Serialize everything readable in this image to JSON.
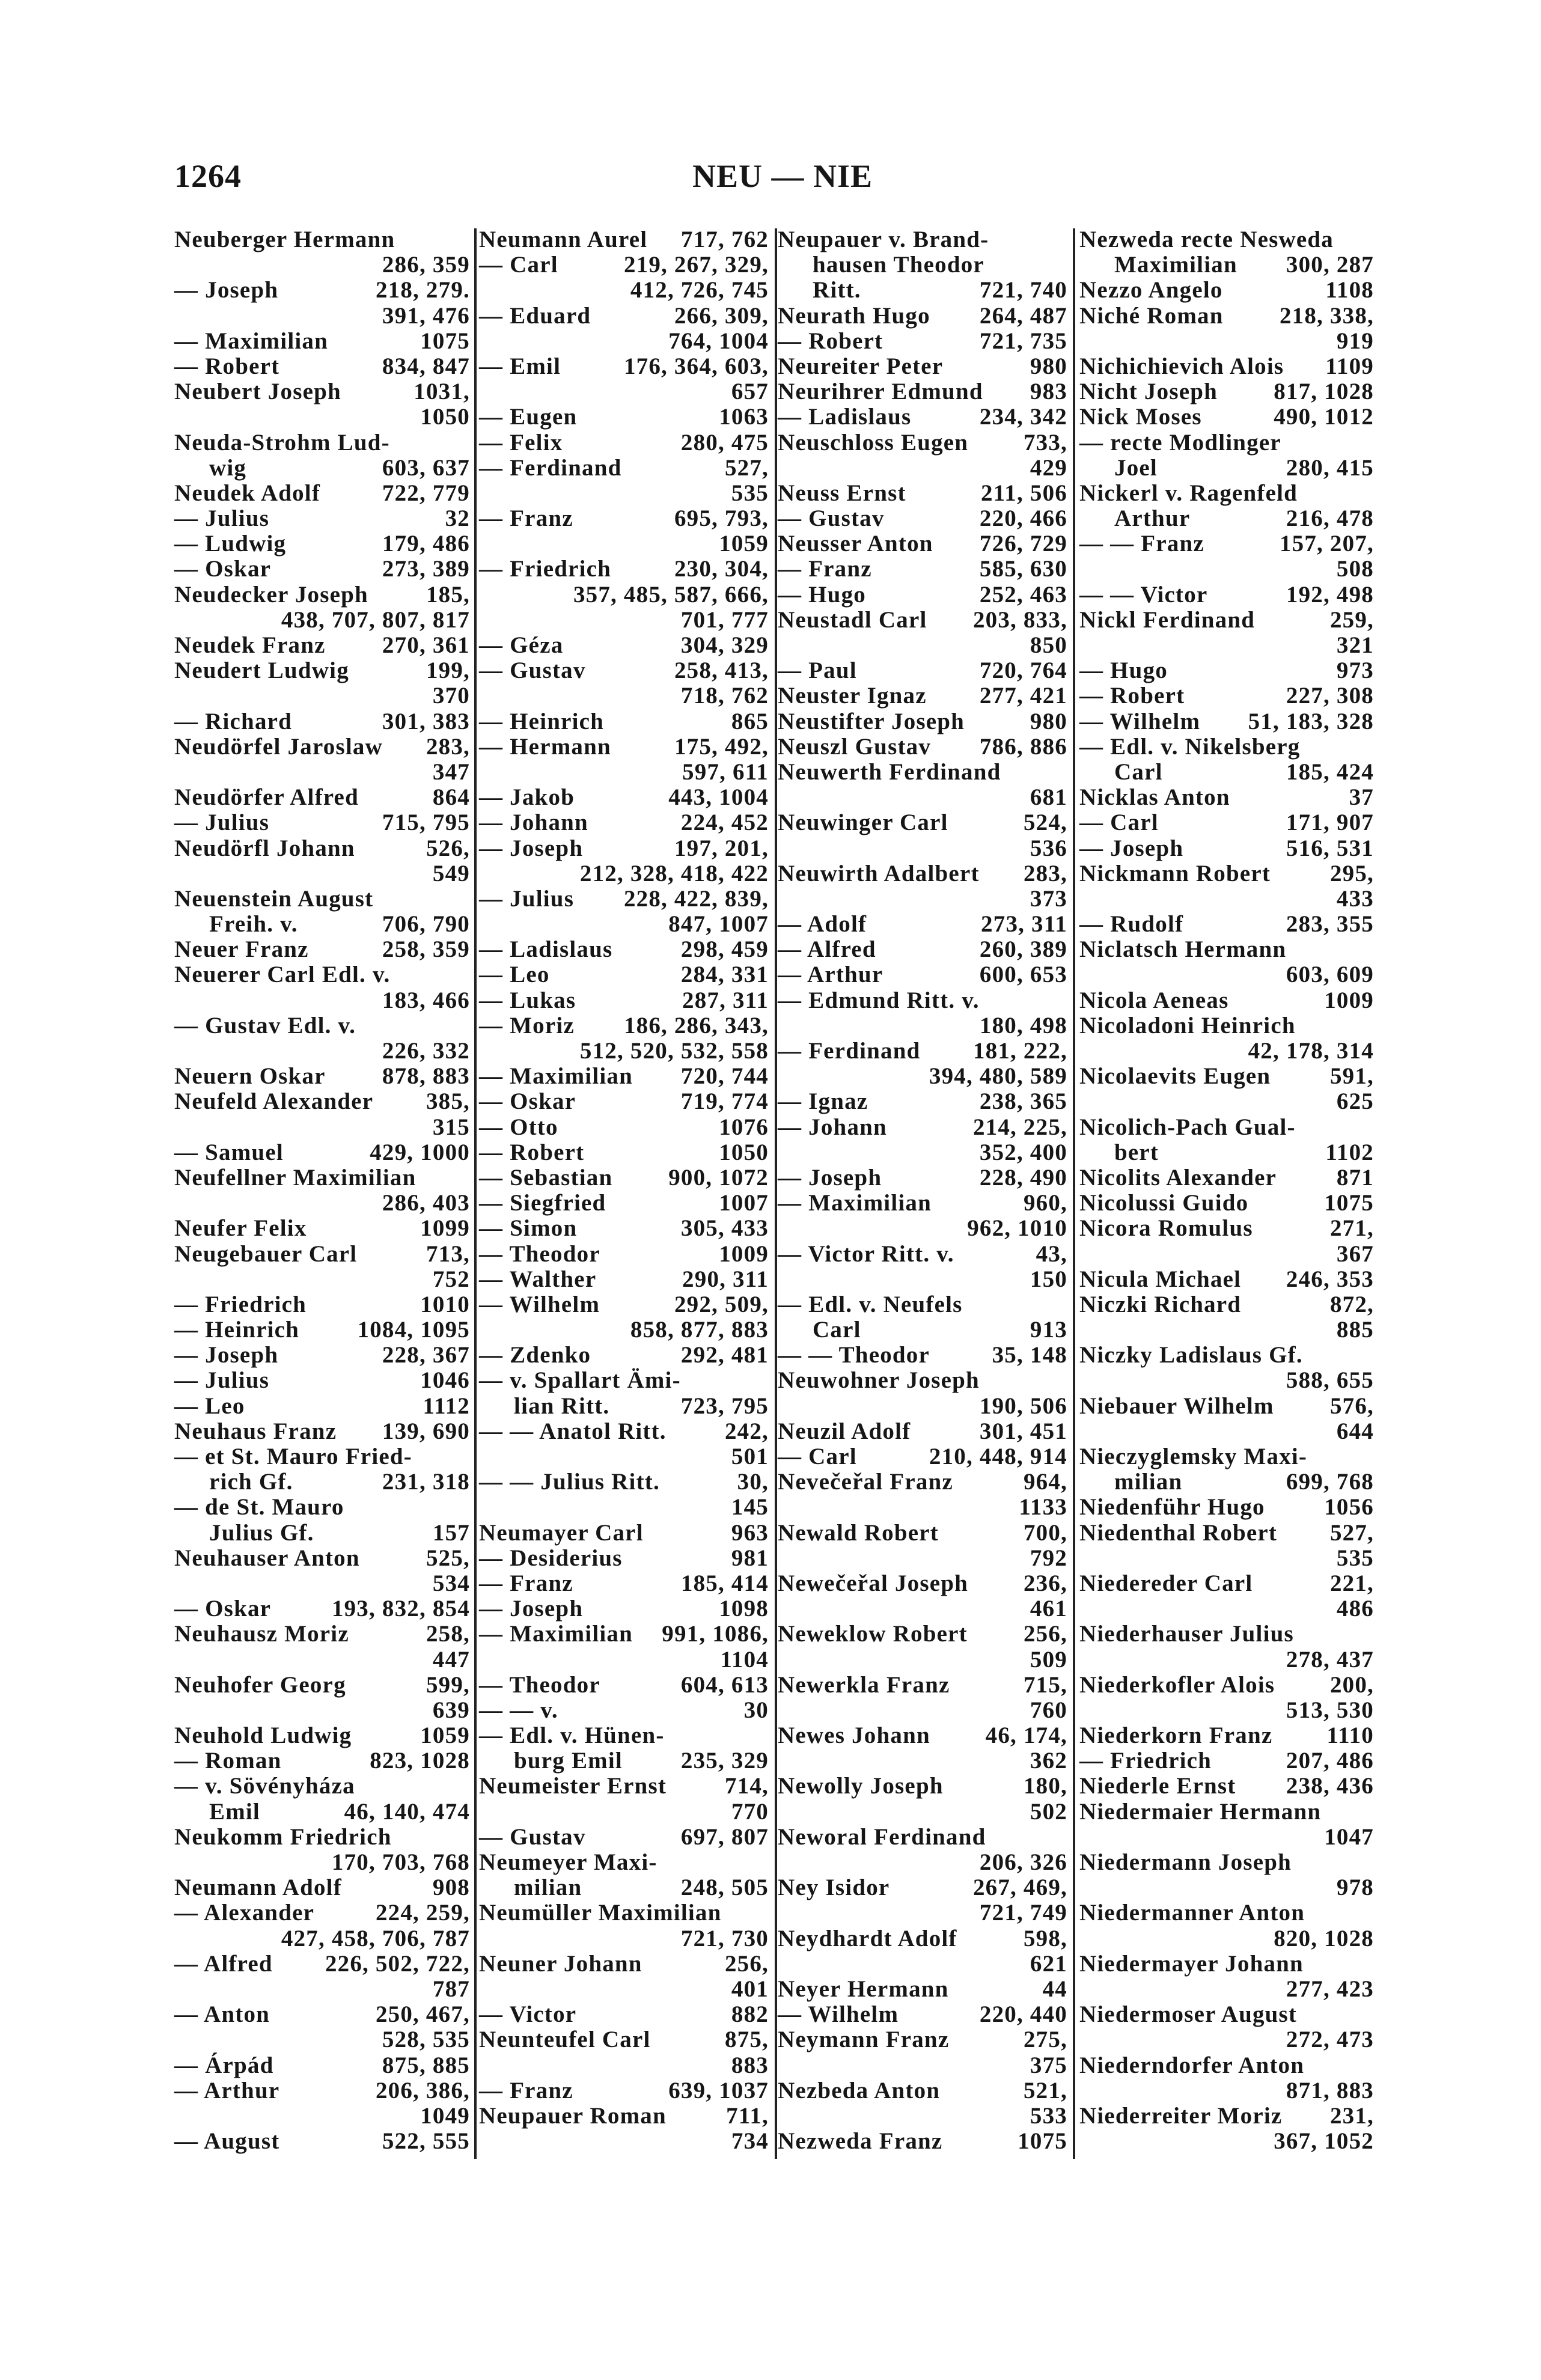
{
  "header": {
    "page_number": "1264",
    "running_head": "NEU — NIE"
  },
  "columns": [
    {
      "lines": [
        [
          "Neuberger Hermann",
          ""
        ],
        [
          "",
          "286, 359"
        ],
        [
          "— Joseph",
          "218, 279."
        ],
        [
          "",
          "391, 476"
        ],
        [
          "— Maximilian",
          "1075"
        ],
        [
          "— Robert",
          "834, 847"
        ],
        [
          "Neubert Joseph",
          "1031,"
        ],
        [
          "",
          "1050"
        ],
        [
          "Neuda-Strohm Lud-",
          ""
        ],
        [
          "wig",
          "603, 637",
          1
        ],
        [
          "Neudek Adolf",
          "722, 779"
        ],
        [
          "— Julius",
          "32"
        ],
        [
          "— Ludwig",
          "179, 486"
        ],
        [
          "— Oskar",
          "273, 389"
        ],
        [
          "Neudecker Joseph",
          "185,"
        ],
        [
          "",
          "438, 707, 807, 817"
        ],
        [
          "Neudek Franz",
          "270, 361"
        ],
        [
          "Neudert Ludwig",
          "199,"
        ],
        [
          "",
          "370"
        ],
        [
          "— Richard",
          "301, 383"
        ],
        [
          "Neudörfel Jaroslaw",
          "283,"
        ],
        [
          "",
          "347"
        ],
        [
          "Neudörfer Alfred",
          "864"
        ],
        [
          "— Julius",
          "715, 795"
        ],
        [
          "Neudörfl Johann",
          "526,"
        ],
        [
          "",
          "549"
        ],
        [
          "Neuenstein August",
          ""
        ],
        [
          "Freih. v.",
          "706, 790",
          1
        ],
        [
          "Neuer Franz",
          "258, 359"
        ],
        [
          "Neuerer Carl Edl. v.",
          ""
        ],
        [
          "",
          "183, 466"
        ],
        [
          "— Gustav Edl. v.",
          ""
        ],
        [
          "",
          "226, 332"
        ],
        [
          "Neuern Oskar",
          "878, 883"
        ],
        [
          "Neufeld Alexander",
          "385,"
        ],
        [
          "",
          "315"
        ],
        [
          "— Samuel",
          "429, 1000"
        ],
        [
          "Neufellner Maximilian",
          ""
        ],
        [
          "",
          "286, 403"
        ],
        [
          "Neufer Felix",
          "1099"
        ],
        [
          "Neugebauer Carl",
          "713,"
        ],
        [
          "",
          "752"
        ],
        [
          "— Friedrich",
          "1010"
        ],
        [
          "— Heinrich",
          "1084, 1095"
        ],
        [
          "— Joseph",
          "228, 367"
        ],
        [
          "— Julius",
          "1046"
        ],
        [
          "— Leo",
          "1112"
        ],
        [
          "Neuhaus Franz",
          "139, 690"
        ],
        [
          "— et St. Mauro Fried-",
          ""
        ],
        [
          "rich Gf.",
          "231, 318",
          1
        ],
        [
          "— de St. Mauro",
          ""
        ],
        [
          "Julius Gf.",
          "157",
          1
        ],
        [
          "Neuhauser Anton",
          "525,"
        ],
        [
          "",
          "534"
        ],
        [
          "— Oskar",
          "193, 832, 854"
        ],
        [
          "Neuhausz Moriz",
          "258,"
        ],
        [
          "",
          "447"
        ],
        [
          "Neuhofer Georg",
          "599,"
        ],
        [
          "",
          "639"
        ],
        [
          "Neuhold Ludwig",
          "1059"
        ],
        [
          "— Roman",
          "823, 1028"
        ],
        [
          "— v. Sövényháza",
          ""
        ],
        [
          "Emil",
          "46, 140, 474",
          1
        ],
        [
          "Neukomm Friedrich",
          ""
        ],
        [
          "",
          "170, 703, 768"
        ],
        [
          "Neumann Adolf",
          "908"
        ],
        [
          "— Alexander",
          "224, 259,"
        ],
        [
          "",
          "427, 458, 706, 787"
        ],
        [
          "— Alfred",
          "226, 502, 722,"
        ],
        [
          "",
          "787"
        ],
        [
          "— Anton",
          "250, 467,"
        ],
        [
          "",
          "528, 535"
        ],
        [
          "— Árpád",
          "875, 885"
        ],
        [
          "— Arthur",
          "206, 386,"
        ],
        [
          "",
          "1049"
        ],
        [
          "— August",
          "522, 555"
        ]
      ]
    },
    {
      "lines": [
        [
          "Neumann Aurel",
          "717, 762"
        ],
        [
          "— Carl",
          "219, 267, 329,"
        ],
        [
          "",
          "412, 726, 745"
        ],
        [
          "— Eduard",
          "266, 309,"
        ],
        [
          "",
          "764, 1004"
        ],
        [
          "— Emil",
          "176, 364, 603,"
        ],
        [
          "",
          "657"
        ],
        [
          "— Eugen",
          "1063"
        ],
        [
          "— Felix",
          "280, 475"
        ],
        [
          "— Ferdinand",
          "527,"
        ],
        [
          "",
          "535"
        ],
        [
          "— Franz",
          "695, 793,"
        ],
        [
          "",
          "1059"
        ],
        [
          "— Friedrich",
          "230, 304,"
        ],
        [
          "",
          "357, 485, 587, 666,"
        ],
        [
          "",
          "701, 777"
        ],
        [
          "— Géza",
          "304, 329"
        ],
        [
          "— Gustav",
          "258, 413,"
        ],
        [
          "",
          "718, 762"
        ],
        [
          "— Heinrich",
          "865"
        ],
        [
          "— Hermann",
          "175, 492,"
        ],
        [
          "",
          "597, 611"
        ],
        [
          "— Jakob",
          "443, 1004"
        ],
        [
          "— Johann",
          "224, 452"
        ],
        [
          "— Joseph",
          "197, 201,"
        ],
        [
          "",
          "212, 328, 418, 422"
        ],
        [
          "— Julius",
          "228, 422, 839,"
        ],
        [
          "",
          "847, 1007"
        ],
        [
          "— Ladislaus",
          "298, 459"
        ],
        [
          "— Leo",
          "284, 331"
        ],
        [
          "— Lukas",
          "287, 311"
        ],
        [
          "— Moriz",
          "186, 286, 343,"
        ],
        [
          "",
          "512, 520, 532, 558"
        ],
        [
          "— Maximilian",
          "720, 744"
        ],
        [
          "— Oskar",
          "719, 774"
        ],
        [
          "— Otto",
          "1076"
        ],
        [
          "— Robert",
          "1050"
        ],
        [
          "— Sebastian",
          "900, 1072"
        ],
        [
          "— Siegfried",
          "1007"
        ],
        [
          "— Simon",
          "305, 433"
        ],
        [
          "— Theodor",
          "1009"
        ],
        [
          "— Walther",
          "290, 311"
        ],
        [
          "— Wilhelm",
          "292, 509,"
        ],
        [
          "",
          "858, 877, 883"
        ],
        [
          "— Zdenko",
          "292, 481"
        ],
        [
          "— v. Spallart Ämi-",
          ""
        ],
        [
          "lian Ritt.",
          "723, 795",
          1
        ],
        [
          "— — Anatol Ritt.",
          "242,"
        ],
        [
          "",
          "501"
        ],
        [
          "— — Julius Ritt.",
          "30,"
        ],
        [
          "",
          "145"
        ],
        [
          "Neumayer Carl",
          "963"
        ],
        [
          "— Desiderius",
          "981"
        ],
        [
          "— Franz",
          "185, 414"
        ],
        [
          "— Joseph",
          "1098"
        ],
        [
          "— Maximilian",
          "991, 1086,"
        ],
        [
          "",
          "1104"
        ],
        [
          "— Theodor",
          "604, 613"
        ],
        [
          "— — v.",
          "30"
        ],
        [
          "— Edl. v. Hünen-",
          ""
        ],
        [
          "burg Emil",
          "235, 329",
          1
        ],
        [
          "Neumeister Ernst",
          "714,"
        ],
        [
          "",
          "770"
        ],
        [
          "— Gustav",
          "697, 807"
        ],
        [
          "Neumeyer Maxi-",
          ""
        ],
        [
          "milian",
          "248, 505",
          1
        ],
        [
          "Neumüller Maximilian",
          ""
        ],
        [
          "",
          "721, 730"
        ],
        [
          "Neuner Johann",
          "256,"
        ],
        [
          "",
          "401"
        ],
        [
          "— Victor",
          "882"
        ],
        [
          "Neunteufel Carl",
          "875,"
        ],
        [
          "",
          "883"
        ],
        [
          "— Franz",
          "639, 1037"
        ],
        [
          "Neupauer Roman",
          "711,"
        ],
        [
          "",
          "734"
        ]
      ]
    },
    {
      "lines": [
        [
          "Neupauer v. Brand-",
          ""
        ],
        [
          "hausen Theodor",
          "",
          1
        ],
        [
          "Ritt.",
          "721, 740",
          1
        ],
        [
          "Neurath Hugo",
          "264, 487"
        ],
        [
          "— Robert",
          "721, 735"
        ],
        [
          "Neureiter Peter",
          "980"
        ],
        [
          "Neurihrer Edmund",
          "983"
        ],
        [
          "— Ladislaus",
          "234, 342"
        ],
        [
          "Neuschloss Eugen",
          "733,"
        ],
        [
          "",
          "429"
        ],
        [
          "Neuss Ernst",
          "211, 506"
        ],
        [
          "— Gustav",
          "220, 466"
        ],
        [
          "Neusser Anton",
          "726, 729"
        ],
        [
          "— Franz",
          "585, 630"
        ],
        [
          "— Hugo",
          "252, 463"
        ],
        [
          "Neustadl Carl",
          "203, 833,"
        ],
        [
          "",
          "850"
        ],
        [
          "— Paul",
          "720, 764"
        ],
        [
          "Neuster Ignaz",
          "277, 421"
        ],
        [
          "Neustifter Joseph",
          "980"
        ],
        [
          "Neuszl Gustav",
          "786, 886"
        ],
        [
          "Neuwerth Ferdinand",
          ""
        ],
        [
          "",
          "681"
        ],
        [
          "Neuwinger Carl",
          "524,"
        ],
        [
          "",
          "536"
        ],
        [
          "Neuwirth Adalbert",
          "283,"
        ],
        [
          "",
          "373"
        ],
        [
          "— Adolf",
          "273, 311"
        ],
        [
          "— Alfred",
          "260, 389"
        ],
        [
          "— Arthur",
          "600, 653"
        ],
        [
          "— Edmund Ritt. v.",
          ""
        ],
        [
          "",
          "180, 498"
        ],
        [
          "— Ferdinand",
          "181, 222,"
        ],
        [
          "",
          "394, 480, 589"
        ],
        [
          "— Ignaz",
          "238, 365"
        ],
        [
          "— Johann",
          "214, 225,"
        ],
        [
          "",
          "352, 400"
        ],
        [
          "— Joseph",
          "228, 490"
        ],
        [
          "— Maximilian",
          "960,"
        ],
        [
          "",
          "962, 1010"
        ],
        [
          "— Victor Ritt. v.",
          "43,"
        ],
        [
          "",
          "150"
        ],
        [
          "— Edl. v. Neufels",
          ""
        ],
        [
          "Carl",
          "913",
          1
        ],
        [
          "— — Theodor",
          "35, 148"
        ],
        [
          "Neuwohner Joseph",
          ""
        ],
        [
          "",
          "190, 506"
        ],
        [
          "Neuzil Adolf",
          "301, 451"
        ],
        [
          "— Carl",
          "210, 448, 914"
        ],
        [
          "Nevečeřal Franz",
          "964,"
        ],
        [
          "",
          "1133"
        ],
        [
          "Newald Robert",
          "700,"
        ],
        [
          "",
          "792"
        ],
        [
          "Newečeřal Joseph",
          "236,"
        ],
        [
          "",
          "461"
        ],
        [
          "Neweklow Robert",
          "256,"
        ],
        [
          "",
          "509"
        ],
        [
          "Newerkla Franz",
          "715,"
        ],
        [
          "",
          "760"
        ],
        [
          "Newes Johann",
          "46, 174,"
        ],
        [
          "",
          "362"
        ],
        [
          "Newolly Joseph",
          "180,"
        ],
        [
          "",
          "502"
        ],
        [
          "Neworal Ferdinand",
          ""
        ],
        [
          "",
          "206, 326"
        ],
        [
          "Ney Isidor",
          "267, 469,"
        ],
        [
          "",
          "721, 749"
        ],
        [
          "Neydhardt Adolf",
          "598,"
        ],
        [
          "",
          "621"
        ],
        [
          "Neyer Hermann",
          "44"
        ],
        [
          "— Wilhelm",
          "220, 440"
        ],
        [
          "Neymann Franz",
          "275,"
        ],
        [
          "",
          "375"
        ],
        [
          "Nezbeda Anton",
          "521,"
        ],
        [
          "",
          "533"
        ],
        [
          "Nezweda Franz",
          "1075"
        ]
      ]
    },
    {
      "lines": [
        [
          "Nezweda recte Nesweda",
          ""
        ],
        [
          "Maximilian",
          "300, 287",
          1
        ],
        [
          "Nezzo Angelo",
          "1108"
        ],
        [
          "Niché Roman",
          "218, 338,"
        ],
        [
          "",
          "919"
        ],
        [
          "Nichichievich Alois",
          "1109"
        ],
        [
          "Nicht Joseph",
          "817, 1028"
        ],
        [
          "Nick Moses",
          "490, 1012"
        ],
        [
          "— recte Modlinger",
          ""
        ],
        [
          "Joel",
          "280, 415",
          1
        ],
        [
          "Nickerl v. Ragenfeld",
          ""
        ],
        [
          "Arthur",
          "216, 478",
          1
        ],
        [
          "— — Franz",
          "157, 207,"
        ],
        [
          "",
          "508"
        ],
        [
          "— — Victor",
          "192, 498"
        ],
        [
          "Nickl Ferdinand",
          "259,"
        ],
        [
          "",
          "321"
        ],
        [
          "— Hugo",
          "973"
        ],
        [
          "— Robert",
          "227, 308"
        ],
        [
          "— Wilhelm",
          "51, 183, 328"
        ],
        [
          "— Edl. v. Nikelsberg",
          ""
        ],
        [
          "Carl",
          "185, 424",
          1
        ],
        [
          "Nicklas Anton",
          "37"
        ],
        [
          "— Carl",
          "171, 907"
        ],
        [
          "— Joseph",
          "516, 531"
        ],
        [
          "Nickmann Robert",
          "295,"
        ],
        [
          "",
          "433"
        ],
        [
          "— Rudolf",
          "283, 355"
        ],
        [
          "Niclatsch Hermann",
          ""
        ],
        [
          "",
          "603, 609"
        ],
        [
          "Nicola Aeneas",
          "1009"
        ],
        [
          "Nicoladoni Heinrich",
          ""
        ],
        [
          "",
          "42, 178, 314"
        ],
        [
          "Nicolaevits Eugen",
          "591,"
        ],
        [
          "",
          "625"
        ],
        [
          "Nicolich-Pach Gual-",
          ""
        ],
        [
          "bert",
          "1102",
          1
        ],
        [
          "Nicolits Alexander",
          "871"
        ],
        [
          "Nicolussi Guido",
          "1075"
        ],
        [
          "Nicora Romulus",
          "271,"
        ],
        [
          "",
          "367"
        ],
        [
          "Nicula Michael",
          "246, 353"
        ],
        [
          "Niczki Richard",
          "872,"
        ],
        [
          "",
          "885"
        ],
        [
          "Niczky Ladislaus Gf.",
          ""
        ],
        [
          "",
          "588, 655"
        ],
        [
          "Niebauer Wilhelm",
          "576,"
        ],
        [
          "",
          "644"
        ],
        [
          "Nieczyglemsky Maxi-",
          ""
        ],
        [
          "milian",
          "699, 768",
          1
        ],
        [
          "Niedenführ Hugo",
          "1056"
        ],
        [
          "Niedenthal Robert",
          "527,"
        ],
        [
          "",
          "535"
        ],
        [
          "Niedereder Carl",
          "221,"
        ],
        [
          "",
          "486"
        ],
        [
          "Niederhauser Julius",
          ""
        ],
        [
          "",
          "278, 437"
        ],
        [
          "Niederkofler Alois",
          "200,"
        ],
        [
          "",
          "513, 530"
        ],
        [
          "Niederkorn Franz",
          "1110"
        ],
        [
          "— Friedrich",
          "207, 486"
        ],
        [
          "Niederle Ernst",
          "238, 436"
        ],
        [
          "Niedermaier Hermann",
          ""
        ],
        [
          "",
          "1047"
        ],
        [
          "Niedermann Joseph",
          ""
        ],
        [
          "",
          "978"
        ],
        [
          "Niedermanner Anton",
          ""
        ],
        [
          "",
          "820, 1028"
        ],
        [
          "Niedermayer Johann",
          ""
        ],
        [
          "",
          "277, 423"
        ],
        [
          "Niedermoser August",
          ""
        ],
        [
          "",
          "272, 473"
        ],
        [
          "Niederndorfer Anton",
          ""
        ],
        [
          "",
          "871, 883"
        ],
        [
          "Niederreiter Moriz",
          "231,"
        ],
        [
          "",
          "367, 1052"
        ]
      ]
    }
  ]
}
